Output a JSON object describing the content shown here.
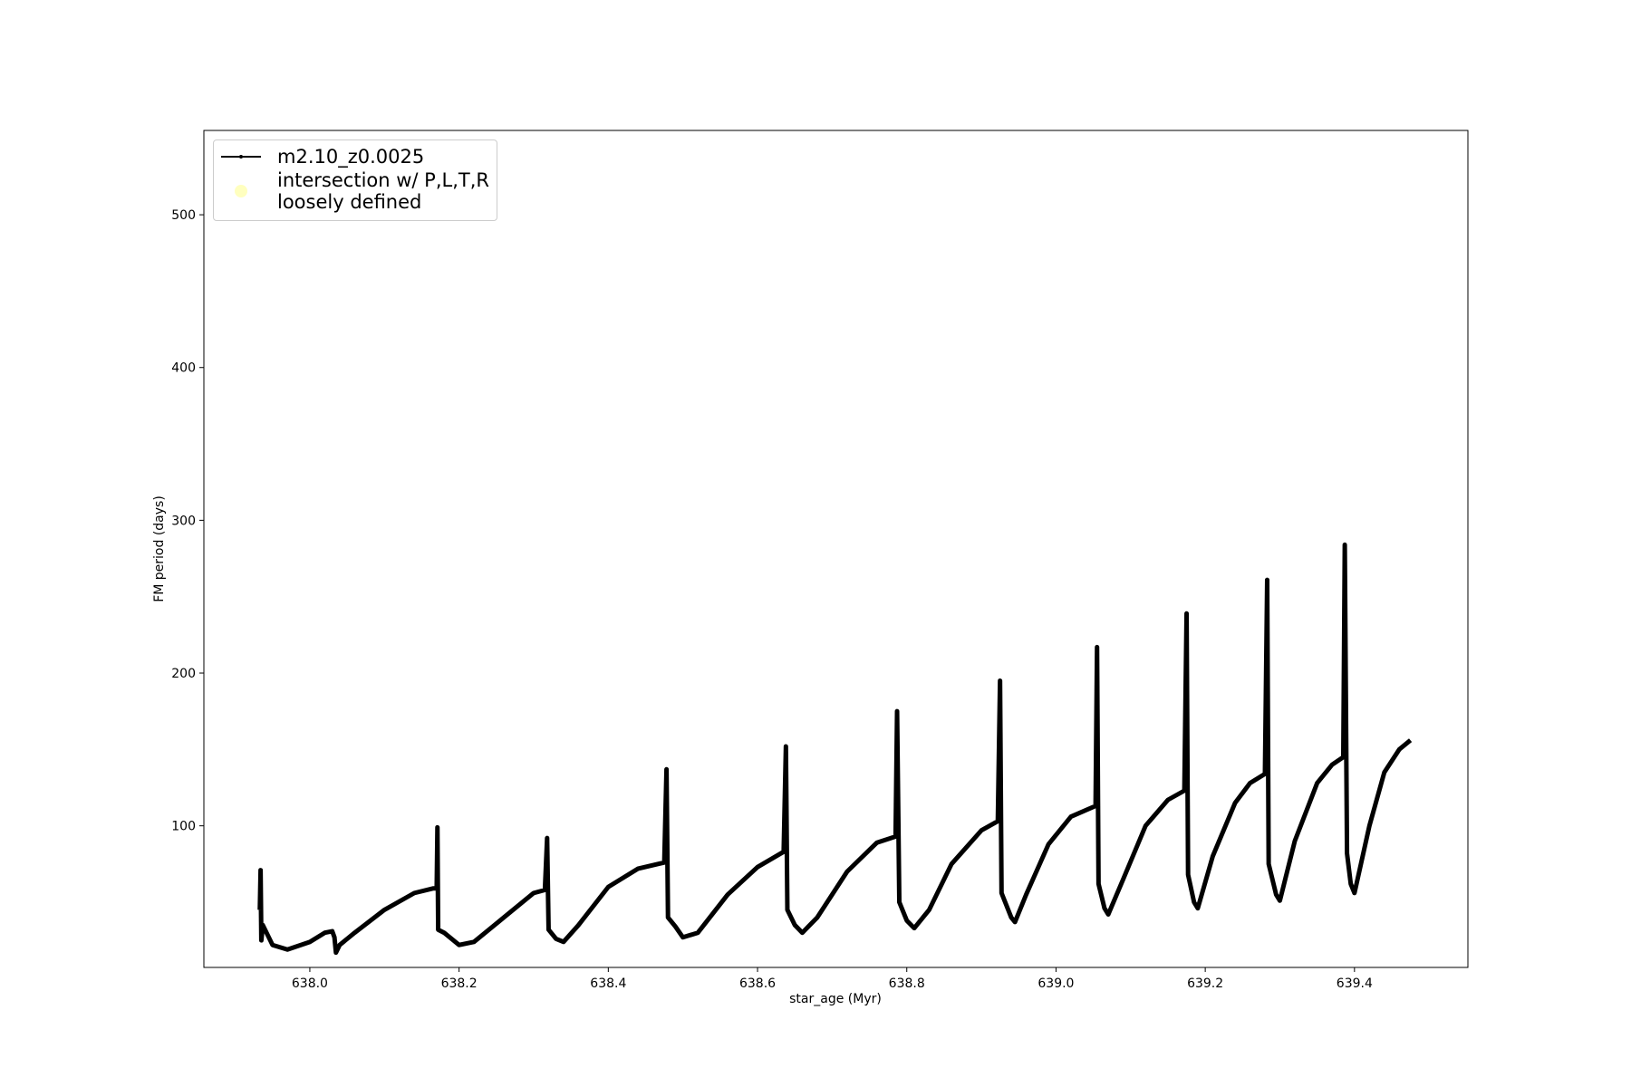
{
  "chart_data": {
    "type": "line",
    "xlabel": "star_age (Myr)",
    "ylabel": "FM period (days)",
    "xlim": [
      637.858,
      639.552
    ],
    "ylim": [
      7.3,
      555.2
    ],
    "xticks": [
      {
        "value": 638.0,
        "label": "638.0"
      },
      638.2,
      638.4,
      638.6,
      638.8,
      {
        "value": 639.0,
        "label": "639.0"
      },
      639.2,
      639.4
    ],
    "yticks": [
      100,
      200,
      300,
      400,
      500
    ],
    "legend": "upper left",
    "series": [
      {
        "name": "m2.10_z0.0025",
        "color": "#000000",
        "x": [
          637.933,
          637.934,
          637.935,
          637.937,
          637.95,
          637.97,
          638.0,
          638.02,
          638.03,
          638.033,
          638.035,
          638.04,
          638.06,
          638.1,
          638.14,
          638.165,
          638.17,
          638.171,
          638.172,
          638.18,
          638.2,
          638.22,
          638.26,
          638.3,
          638.315,
          638.318,
          638.32,
          638.33,
          638.34,
          638.36,
          638.4,
          638.44,
          638.475,
          638.478,
          638.48,
          638.49,
          638.5,
          638.52,
          638.56,
          638.6,
          638.635,
          638.638,
          638.64,
          638.65,
          638.66,
          638.68,
          638.72,
          638.76,
          638.785,
          638.787,
          638.79,
          638.8,
          638.81,
          638.83,
          638.86,
          638.9,
          638.922,
          638.925,
          638.927,
          638.94,
          638.945,
          638.96,
          638.99,
          639.02,
          639.053,
          639.055,
          639.057,
          639.065,
          639.07,
          639.09,
          639.12,
          639.15,
          639.172,
          639.175,
          639.177,
          639.185,
          639.19,
          639.21,
          639.24,
          639.26,
          639.28,
          639.283,
          639.285,
          639.295,
          639.3,
          639.32,
          639.35,
          639.37,
          639.385,
          639.387,
          639.39,
          639.395,
          639.4,
          639.42,
          639.44,
          639.46,
          639.475
        ],
        "values": [
          45,
          71,
          25,
          35,
          22,
          19,
          24,
          30,
          31,
          27,
          17,
          22,
          30,
          45,
          56,
          59,
          59,
          99,
          32,
          30,
          22,
          24,
          40,
          56,
          58,
          92,
          32,
          26,
          24,
          35,
          60,
          72,
          76,
          137,
          40,
          34,
          27,
          30,
          55,
          73,
          83,
          152,
          45,
          35,
          30,
          40,
          70,
          89,
          93,
          175,
          50,
          38,
          33,
          45,
          75,
          97,
          103,
          195,
          56,
          40,
          37,
          55,
          88,
          106,
          113,
          217,
          62,
          46,
          42,
          65,
          100,
          117,
          123,
          239,
          68,
          50,
          46,
          80,
          115,
          128,
          134,
          261,
          75,
          55,
          51,
          90,
          128,
          140,
          145,
          284,
          82,
          62,
          56,
          100,
          135,
          150,
          156
        ]
      },
      {
        "name": "intersection w/ P,L,T,R\nloosely defined",
        "color": "#ffffbf",
        "x": [],
        "values": []
      }
    ]
  }
}
